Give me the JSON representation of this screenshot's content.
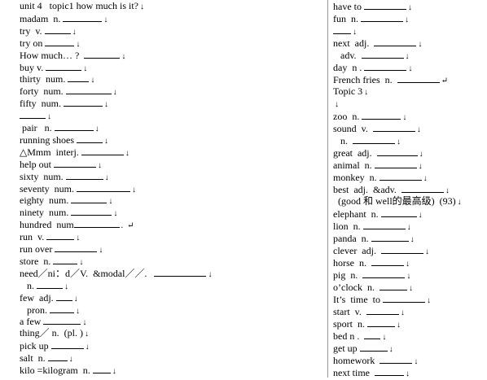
{
  "left": [
    {
      "text": "unit 4   topic1 how much is it?",
      "blank": 0,
      "mark": "↓"
    },
    {
      "text": "madam  n. ",
      "blank": 48,
      "mark": "↓"
    },
    {
      "text": "try  v. ",
      "blank": 32,
      "mark": "↓"
    },
    {
      "text": "try on ",
      "blank": 36,
      "mark": "↓"
    },
    {
      "text": "How much… ?  ",
      "blank": 44,
      "mark": "↓"
    },
    {
      "text": "buy v. ",
      "blank": 44,
      "mark": "↓"
    },
    {
      "text": "thirty  num. ",
      "blank": 26,
      "mark": "↓"
    },
    {
      "text": "forty  num. ",
      "blank": 56,
      "mark": "↓"
    },
    {
      "text": "fifty  num. ",
      "blank": 48,
      "mark": "↓"
    },
    {
      "text": "",
      "blank": 32,
      "mark": "↓"
    },
    {
      "text": " pair   n. ",
      "blank": 48,
      "mark": "↓"
    },
    {
      "text": "running shoes ",
      "blank": 32,
      "mark": "↓"
    },
    {
      "text": "△Mmm  interj. ",
      "blank": 52,
      "mark": "↓"
    },
    {
      "text": "help out ",
      "blank": 52,
      "mark": "↓"
    },
    {
      "text": "sixty  num. ",
      "blank": 46,
      "mark": "↓"
    },
    {
      "text": "seventy  num. ",
      "blank": 66,
      "mark": "↓"
    },
    {
      "text": "eighty  num. ",
      "blank": 44,
      "mark": "↓"
    },
    {
      "text": "ninety  num. ",
      "blank": 50,
      "mark": "↓"
    },
    {
      "text": "hundred  num",
      "blank": 56,
      "mark": ".  ↵"
    },
    {
      "text": "run  v. ",
      "blank": 34,
      "mark": "↓"
    },
    {
      "text": "run over ",
      "blank": 52,
      "mark": "↓"
    },
    {
      "text": "store  n. ",
      "blank": 30,
      "mark": "↓"
    },
    {
      "text": "need／ni：d／V.  &modal／／.   ",
      "blank": 64,
      "mark": "↓"
    },
    {
      "text": "   n. ",
      "blank": 32,
      "mark": "↓"
    },
    {
      "text": "few  adj. ",
      "blank": 20,
      "mark": "↓"
    },
    {
      "text": "   pron. ",
      "blank": 30,
      "mark": "↓"
    },
    {
      "text": "a few ",
      "blank": 46,
      "mark": "↓"
    },
    {
      "text": "thing／ n.  (pl. )",
      "blank": 0,
      "mark": "↓"
    },
    {
      "text": "pick up ",
      "blank": 40,
      "mark": "↓"
    },
    {
      "text": "salt  n. ",
      "blank": 24,
      "mark": "↓"
    },
    {
      "text": "kilo =kilogram  n. ",
      "blank": 22,
      "mark": "↓"
    }
  ],
  "right": [
    {
      "text": "have to ",
      "blank": 52,
      "mark": "↓"
    },
    {
      "text": "fun  n. ",
      "blank": 52,
      "mark": "↓"
    },
    {
      "text": "",
      "blank": 22,
      "mark": "↓"
    },
    {
      "text": "next  adj.  ",
      "blank": 52,
      "mark": "↓"
    },
    {
      "text": "   adv.  ",
      "blank": 52,
      "mark": "↓"
    },
    {
      "text": "day  n . ",
      "blank": 52,
      "mark": "↓"
    },
    {
      "text": "French fries  n.  ",
      "blank": 52,
      "mark": "↵"
    },
    {
      "text": "Topic 3",
      "blank": 0,
      "mark": "↓"
    },
    {
      "text": "",
      "blank": 0,
      "mark": "↓"
    },
    {
      "text": "zoo  n. ",
      "blank": 48,
      "mark": "↓"
    },
    {
      "text": "sound  v.  ",
      "blank": 52,
      "mark": "↓"
    },
    {
      "text": "   n.  ",
      "blank": 52,
      "mark": "↓"
    },
    {
      "text": "great  adj.  ",
      "blank": 50,
      "mark": "↓"
    },
    {
      "text": "animal  n. ",
      "blank": 52,
      "mark": "↓"
    },
    {
      "text": "monkey  n. ",
      "blank": 52,
      "mark": "↓"
    },
    {
      "text": "best  adj.  &adv.  ",
      "blank": 52,
      "mark": "↓"
    },
    {
      "text": "  (good 和 well的最高级)  (93)",
      "blank": 0,
      "mark": "↓"
    },
    {
      "text": "elephant  n. ",
      "blank": 44,
      "mark": "↓"
    },
    {
      "text": "lion  n. ",
      "blank": 52,
      "mark": "↓"
    },
    {
      "text": "panda  n. ",
      "blank": 46,
      "mark": "↓"
    },
    {
      "text": "clever  adj.  ",
      "blank": 52,
      "mark": "↓"
    },
    {
      "text": "horse  n.  ",
      "blank": 40,
      "mark": "↓"
    },
    {
      "text": "pig  n.  ",
      "blank": 52,
      "mark": "↓"
    },
    {
      "text": "o’clock  n.  ",
      "blank": 34,
      "mark": "↓"
    },
    {
      "text": "It’s  time  to ",
      "blank": 52,
      "mark": "↓"
    },
    {
      "text": "start  v.  ",
      "blank": 40,
      "mark": "↓"
    },
    {
      "text": "sport  n. ",
      "blank": 34,
      "mark": "↓"
    },
    {
      "text": "bed n .  ",
      "blank": 20,
      "mark": "↓"
    },
    {
      "text": "get up ",
      "blank": 34,
      "mark": "↓"
    },
    {
      "text": "homework  ",
      "blank": 40,
      "mark": "↓"
    },
    {
      "text": "next time  ",
      "blank": 36,
      "mark": "↓"
    }
  ]
}
